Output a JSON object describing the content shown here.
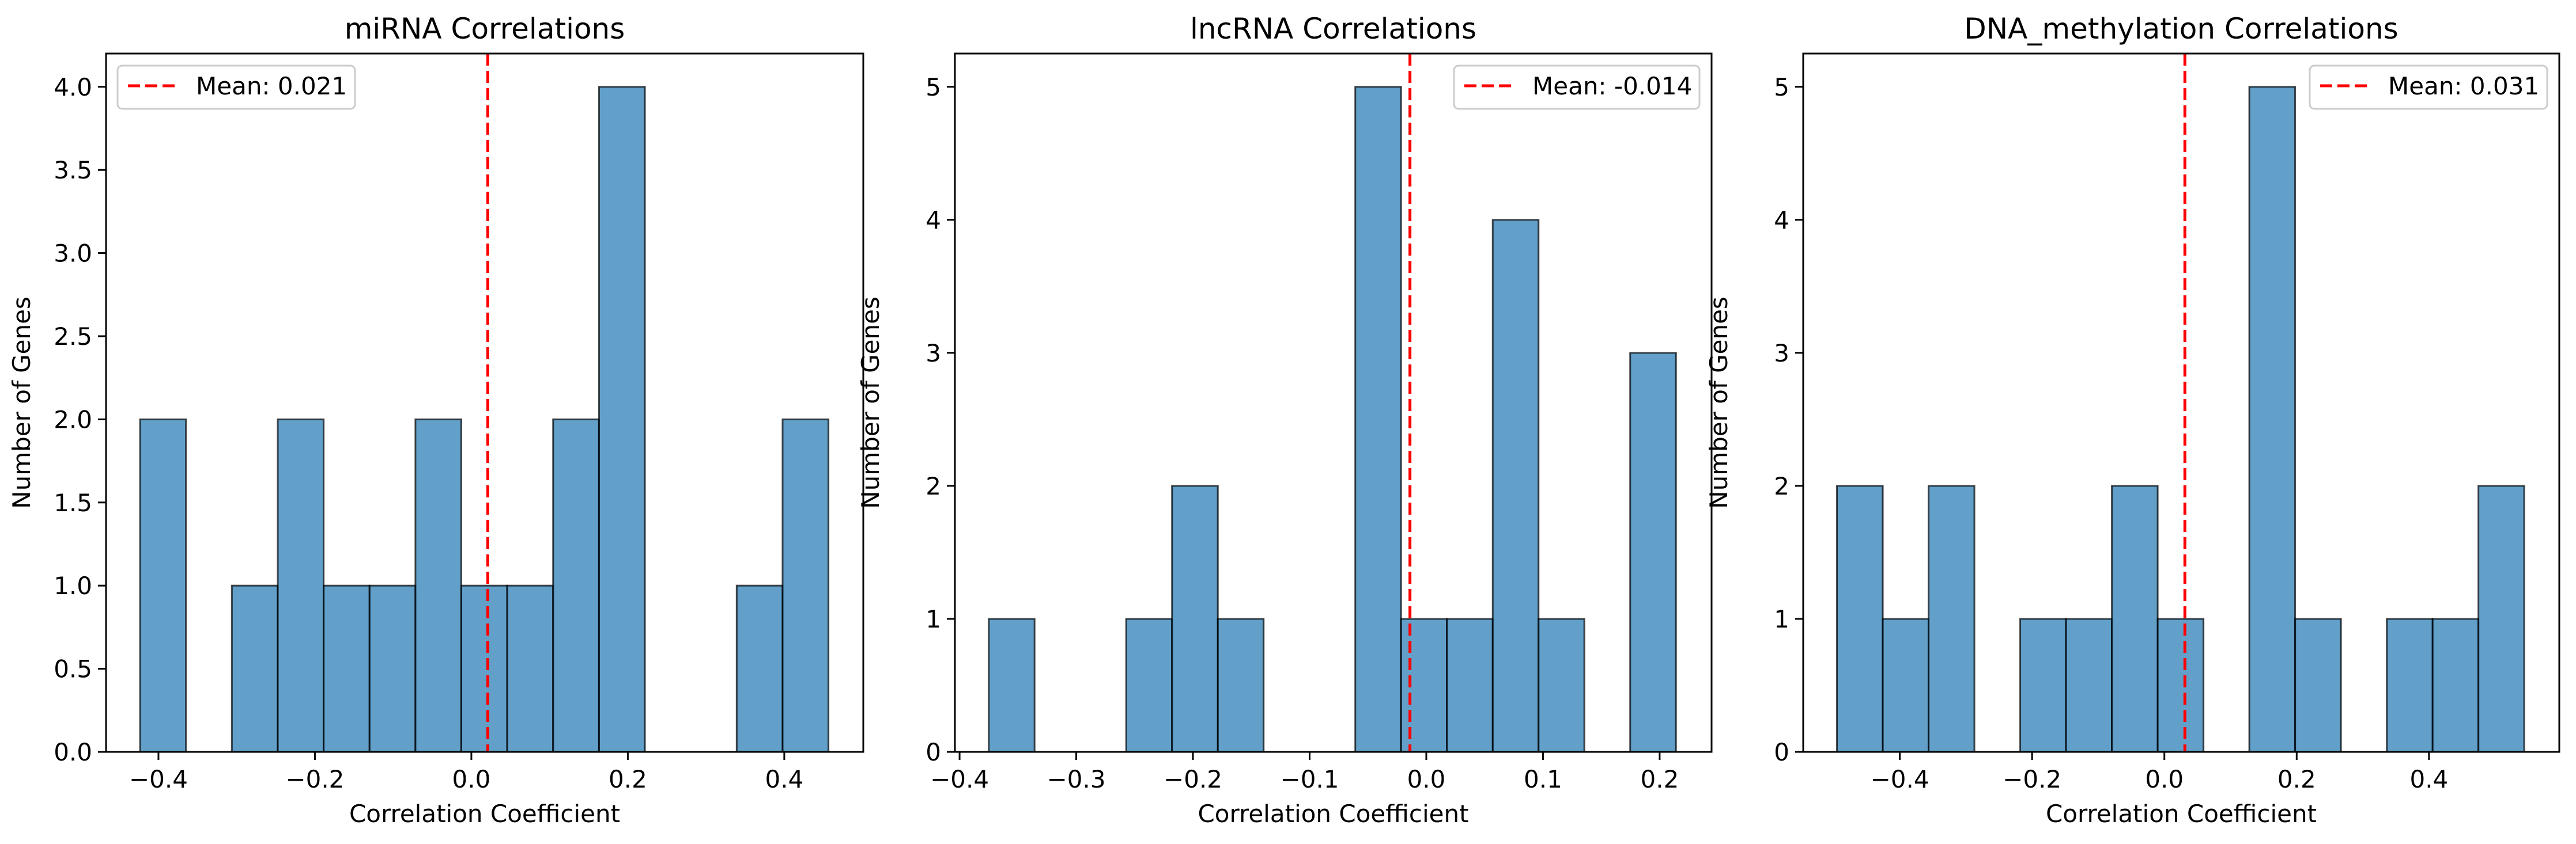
{
  "figure": {
    "panel_count": 3
  },
  "colors": {
    "bar_fill": "#1f77b4",
    "bar_edge": "#000000",
    "mean_line": "#ff0000",
    "legend_border": "#cccccc"
  },
  "chart_data": [
    {
      "type": "bar",
      "subtype": "histogram",
      "title": "miRNA Correlations",
      "xlabel": "Correlation Coefficient",
      "ylabel": "Number of Genes",
      "xlim": [
        -0.467,
        0.501
      ],
      "ylim": [
        0,
        4.2
      ],
      "xticks": [
        -0.4,
        -0.2,
        0.0,
        0.2,
        0.4
      ],
      "xtick_labels": [
        "−0.4",
        "−0.2",
        "0.0",
        "0.2",
        "0.4"
      ],
      "yticks": [
        0.0,
        0.5,
        1.0,
        1.5,
        2.0,
        2.5,
        3.0,
        3.5,
        4.0
      ],
      "ytick_labels": [
        "0.0",
        "0.5",
        "1.0",
        "1.5",
        "2.0",
        "2.5",
        "3.0",
        "3.5",
        "4.0"
      ],
      "bin_range": [
        -0.4235,
        0.4565
      ],
      "bins": 15,
      "counts": [
        2,
        0,
        1,
        2,
        1,
        1,
        2,
        1,
        1,
        2,
        4,
        0,
        0,
        1,
        2
      ],
      "mean": 0.021,
      "legend": {
        "label": "Mean: 0.021",
        "position": "upper-left"
      },
      "grid": false
    },
    {
      "type": "bar",
      "subtype": "histogram",
      "title": "lncRNA Correlations",
      "xlabel": "Correlation Coefficient",
      "ylabel": "Number of Genes",
      "xlim": [
        -0.404,
        0.2445
      ],
      "ylim": [
        0,
        5.25
      ],
      "xticks": [
        -0.4,
        -0.3,
        -0.2,
        -0.1,
        0.0,
        0.1,
        0.2
      ],
      "xtick_labels": [
        "−0.4",
        "−0.3",
        "−0.2",
        "−0.1",
        "0.0",
        "0.1",
        "0.2"
      ],
      "yticks": [
        0,
        1,
        2,
        3,
        4,
        5
      ],
      "ytick_labels": [
        "0",
        "1",
        "2",
        "3",
        "4",
        "5"
      ],
      "bin_range": [
        -0.375,
        0.214
      ],
      "bins": 15,
      "counts": [
        1,
        0,
        0,
        1,
        2,
        1,
        0,
        0,
        5,
        1,
        1,
        4,
        1,
        0,
        3
      ],
      "mean": -0.014,
      "legend": {
        "label": "Mean: -0.014",
        "position": "upper-right"
      },
      "grid": false
    },
    {
      "type": "bar",
      "subtype": "histogram",
      "title": "DNA_methylation Correlations",
      "xlabel": "Correlation Coefficient",
      "ylabel": "Number of Genes",
      "xlim": [
        -0.546,
        0.597
      ],
      "ylim": [
        0,
        5.25
      ],
      "xticks": [
        -0.4,
        -0.2,
        0.0,
        0.2,
        0.4
      ],
      "xtick_labels": [
        "−0.4",
        "−0.2",
        "0.0",
        "0.2",
        "0.4"
      ],
      "yticks": [
        0,
        1,
        2,
        3,
        4,
        5
      ],
      "ytick_labels": [
        "0",
        "1",
        "2",
        "3",
        "4",
        "5"
      ],
      "bin_range": [
        -0.495,
        0.544
      ],
      "bins": 15,
      "counts": [
        2,
        1,
        2,
        0,
        1,
        1,
        2,
        1,
        0,
        5,
        1,
        0,
        1,
        1,
        2
      ],
      "mean": 0.031,
      "legend": {
        "label": "Mean: 0.031",
        "position": "upper-right"
      },
      "grid": false
    }
  ]
}
